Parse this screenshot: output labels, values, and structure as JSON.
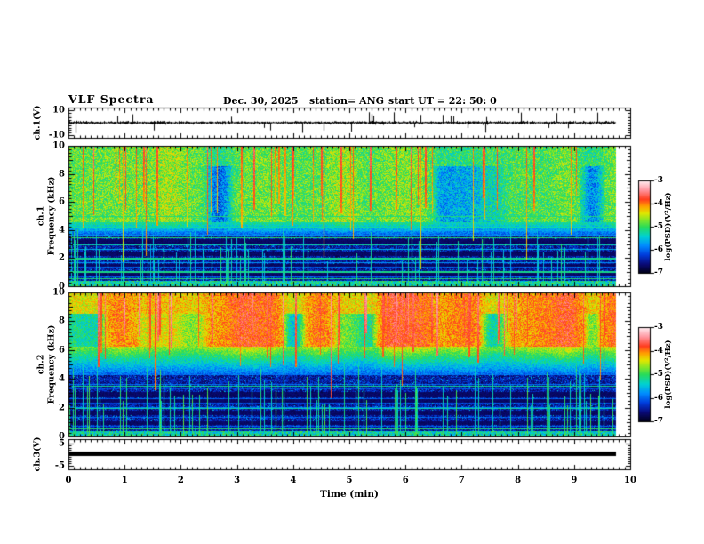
{
  "header": {
    "title": "VLF Spectra",
    "date": "Dec. 30, 2025",
    "station": "station= ANG",
    "start_ut": "start UT =  22: 50: 0"
  },
  "xaxis": {
    "label": "Time (min)",
    "ticks": [
      "0",
      "1",
      "2",
      "3",
      "4",
      "5",
      "6",
      "7",
      "8",
      "9",
      "10"
    ],
    "range": [
      0,
      10
    ]
  },
  "panels": {
    "wave1": {
      "label": "ch.1(V)",
      "ytick_top": "10",
      "ytick_bottom": "-10"
    },
    "spec1": {
      "channel": "ch.1",
      "ylabel": "Frequency (kHz)",
      "yticks": [
        "0",
        "2",
        "4",
        "6",
        "8",
        "10"
      ]
    },
    "spec2": {
      "channel": "ch.2",
      "ylabel": "Frequency (kHz)",
      "yticks": [
        "0",
        "2",
        "4",
        "6",
        "8",
        "10"
      ]
    },
    "wave3": {
      "label": "ch.3(V)",
      "ytick_top": "5",
      "ytick_bottom": "-5"
    }
  },
  "colorbar": {
    "label": "log(PSD)(V²/Hz)",
    "ticks": [
      "-3",
      "-4",
      "-5",
      "-6",
      "-7"
    ],
    "range": [
      -3,
      -7
    ]
  },
  "palette": [
    [
      -7.0,
      "#000014"
    ],
    [
      -6.6,
      "#0a0a78"
    ],
    [
      -6.2,
      "#003cdc"
    ],
    [
      -5.8,
      "#008cff"
    ],
    [
      -5.4,
      "#00d2d2"
    ],
    [
      -5.0,
      "#28dc5a"
    ],
    [
      -4.7,
      "#82e628"
    ],
    [
      -4.4,
      "#e1e600"
    ],
    [
      -4.1,
      "#ffa000"
    ],
    [
      -3.8,
      "#ff3c1e"
    ],
    [
      -3.4,
      "#ff96a0"
    ],
    [
      -3.0,
      "#ffeef2"
    ]
  ],
  "chart_data": [
    {
      "type": "line",
      "name": "ch1-waveform",
      "xlabel": "Time (min)",
      "ylabel": "ch.1(V)",
      "xlim": [
        0,
        10
      ],
      "ylim": [
        -10,
        10
      ],
      "x_end_min": 9.75,
      "baseline_v": 0,
      "noise_amp_v": 1.1,
      "spike_count": 30,
      "spike_max_v": 8.5,
      "color": "#000000",
      "seed": 7,
      "description": "Noisy black trace centered on 0 V, typical amplitude ±2 V, sparse impulsive spikes to about ±8 V"
    },
    {
      "type": "heatmap",
      "name": "ch1-spectrogram",
      "xlabel": "Time (min)",
      "ylabel": "Frequency (kHz)",
      "xlim": [
        0,
        10
      ],
      "ylim": [
        0,
        10
      ],
      "x_end_min": 9.75,
      "zlabel": "log(PSD)(V²/Hz)",
      "zlim": [
        -7,
        -3
      ],
      "seed": 11,
      "top": {
        "fmin": 4.6,
        "psd": -4.85,
        "noise": 0.45
      },
      "mid": {
        "fmin": 3.6,
        "psd_top": -5.1,
        "psd_bot": -6.1
      },
      "low": {
        "fmin": 0.35,
        "psd": -6.45,
        "noise": 0.35
      },
      "bottom": {
        "psd": -5.25,
        "noise": 0.5
      },
      "dark_bands": [
        [
          0.75,
          0.95
        ],
        [
          1.35,
          1.6
        ],
        [
          2.15,
          2.45
        ],
        [
          3.05,
          3.35
        ]
      ],
      "harmonics": {
        "spacing_khz": 0.33,
        "max_khz": 4.4,
        "psd": -5.55
      },
      "strong_lines": [
        0.5,
        1.0,
        1.95,
        2.95,
        3.45,
        4.2,
        4.55,
        5.0
      ],
      "red_streaks": {
        "count": 46,
        "psd": -3.8,
        "f_reach_min": 4.0,
        "f_reach_max": 6.5
      },
      "cyan_streaks": {
        "count": 90,
        "psd": -5.35,
        "f_top": 4.4
      },
      "description": "Green/yellow band 4.5–10 kHz with red sferic streaks; dark blue 0–4 kHz with cyan harmonic lines, dark bands and vertical streaks"
    },
    {
      "type": "heatmap",
      "name": "ch2-spectrogram",
      "xlabel": "Time (min)",
      "ylabel": "Frequency (kHz)",
      "xlim": [
        0,
        10
      ],
      "ylim": [
        0,
        10
      ],
      "x_end_min": 9.75,
      "zlabel": "log(PSD)(V²/Hz)",
      "zlim": [
        -7,
        -3
      ],
      "seed": 23,
      "top": {
        "fmin": 6.3,
        "psd": -4.1,
        "noise": 0.35
      },
      "mid": {
        "fmin": 4.3,
        "psd_top": -4.55,
        "psd_bot": -6.0
      },
      "low": {
        "fmin": 0.35,
        "psd": -6.45,
        "noise": 0.35
      },
      "bottom": {
        "psd": -5.3,
        "noise": 0.5
      },
      "dark_bands": [
        [
          0.8,
          1.0
        ],
        [
          1.5,
          1.8
        ],
        [
          2.35,
          2.6
        ],
        [
          2.75,
          3.1
        ]
      ],
      "harmonics": {
        "spacing_khz": 0.33,
        "max_khz": 4.3,
        "psd": -5.55
      },
      "strong_lines": [
        0.5,
        0.95,
        1.5,
        1.95,
        2.5,
        3.0,
        3.5
      ],
      "red_streaks": {
        "count": 60,
        "psd": -3.55,
        "f_reach_min": 4.8,
        "f_reach_max": 7.5
      },
      "cyan_streaks": {
        "count": 85,
        "psd": -5.15,
        "f_top": 5.2
      },
      "description": "Orange/red band 6.5–10 kHz with dense red streaks; yellow-green 4.5–6.5 kHz; dark blue 0–4 kHz with cyan harmonic lines and long vertical green streaks"
    },
    {
      "type": "line",
      "name": "ch3-waveform",
      "xlabel": "Time (min)",
      "ylabel": "ch.3(V)",
      "xlim": [
        0,
        10
      ],
      "ylim": [
        -5,
        5
      ],
      "x_end_min": 9.75,
      "value_v": 0.2,
      "line_thickness_px": 5,
      "color": "#000000",
      "description": "Constant thick black line slightly above 0 V for the full record"
    }
  ]
}
